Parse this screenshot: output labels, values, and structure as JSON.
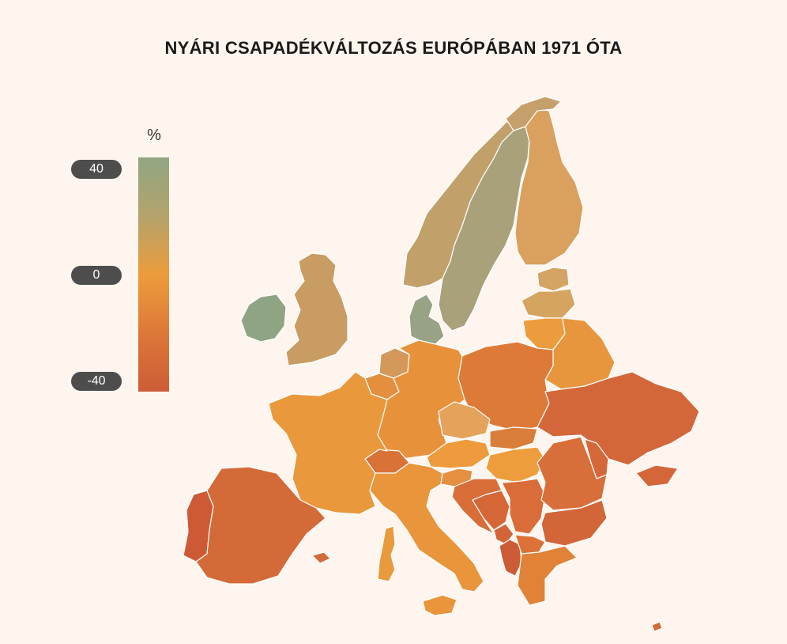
{
  "title": "NYÁRI CSAPADÉKVÁLTOZÁS EURÓPÁBAN 1971 ÓTA",
  "legend": {
    "unit": "%",
    "ticks": {
      "top": "40",
      "mid": "0",
      "bottom": "-40"
    },
    "gradient_colors": [
      "#90a682",
      "#b4a36c",
      "#ec9c3b",
      "#db7438",
      "#cd5d37"
    ]
  },
  "colors": {
    "background": "#fdf5ee",
    "border": "#ffffff"
  },
  "countries": {
    "norway": "#c2a06a",
    "sweden": "#a8a17a",
    "finland": "#d9a15d",
    "denmark": "#97a384",
    "ireland": "#8fa482",
    "uk": "#c89c62",
    "estonia": "#d3a463",
    "latvia": "#d6a461",
    "lithuania": "#ec9c3c",
    "belarus": "#e8963e",
    "poland": "#de7a37",
    "germany": "#e8913b",
    "netherlands": "#d3985a",
    "belgium": "#e38f3e",
    "france": "#ea983c",
    "spain": "#d46a38",
    "portugal": "#cd5a35",
    "czechia": "#e5a25a",
    "slovakia": "#d97e3a",
    "austria": "#ed9b3d",
    "hungary": "#ed9d3c",
    "switzerland": "#d97236",
    "italy": "#e8953c",
    "ukraine": "#d4673a",
    "moldova": "#d5683a",
    "romania": "#d86e39",
    "bulgaria": "#d26638",
    "slovenia": "#e59040",
    "croatia": "#d96d38",
    "bosnia": "#d56737",
    "serbia": "#d96c38",
    "montenegro": "#d26537",
    "albania": "#cd5b35",
    "macedonia": "#dc7238",
    "greece": "#e08238",
    "corsica_sardinia": "#e89a3c",
    "sicily": "#e9953c",
    "mallorca": "#d46a38",
    "cyprus": "#d46a38",
    "sapmi": "#c6a06b"
  }
}
